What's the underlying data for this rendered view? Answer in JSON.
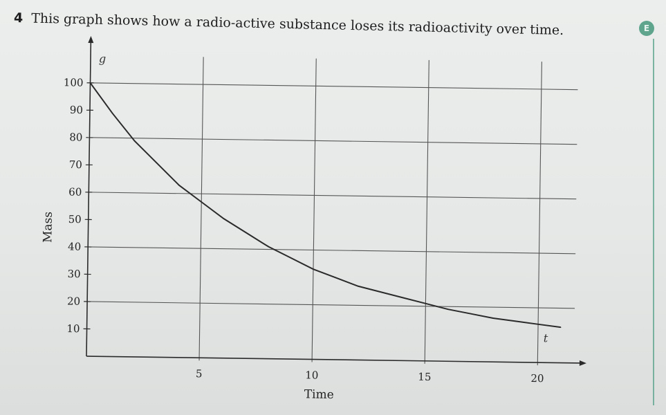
{
  "question": {
    "number": "4",
    "text": "This graph shows how a radio-active substance loses its radioactivity over time."
  },
  "badge": {
    "label": "E",
    "color": "#5fa58e"
  },
  "chart_data": {
    "type": "line",
    "xlabel": "Time",
    "ylabel": "Mass",
    "x_axis_unit": "t",
    "y_axis_unit": "g",
    "xlim": [
      0,
      21
    ],
    "ylim": [
      0,
      105
    ],
    "x_ticks": [
      5,
      10,
      15,
      20
    ],
    "y_ticks": [
      10,
      20,
      30,
      40,
      50,
      60,
      70,
      80,
      90,
      100
    ],
    "x_gridlines": [
      5,
      10,
      15,
      20
    ],
    "y_gridlines": [
      20,
      40,
      60,
      80,
      100
    ],
    "grid": true,
    "series": [
      {
        "x": [
          0,
          1,
          2,
          3,
          4,
          5,
          6,
          7,
          8,
          9,
          10,
          11,
          12,
          13,
          14,
          15,
          16,
          17,
          18,
          19,
          20,
          21
        ],
        "values": [
          100,
          89,
          79,
          71,
          63,
          57,
          51,
          46,
          41,
          37,
          33,
          30,
          27,
          25,
          23,
          21,
          19,
          17.5,
          16,
          15,
          14,
          13
        ]
      }
    ],
    "line_color": "#2a2a2a",
    "grid_color": "#555555"
  }
}
